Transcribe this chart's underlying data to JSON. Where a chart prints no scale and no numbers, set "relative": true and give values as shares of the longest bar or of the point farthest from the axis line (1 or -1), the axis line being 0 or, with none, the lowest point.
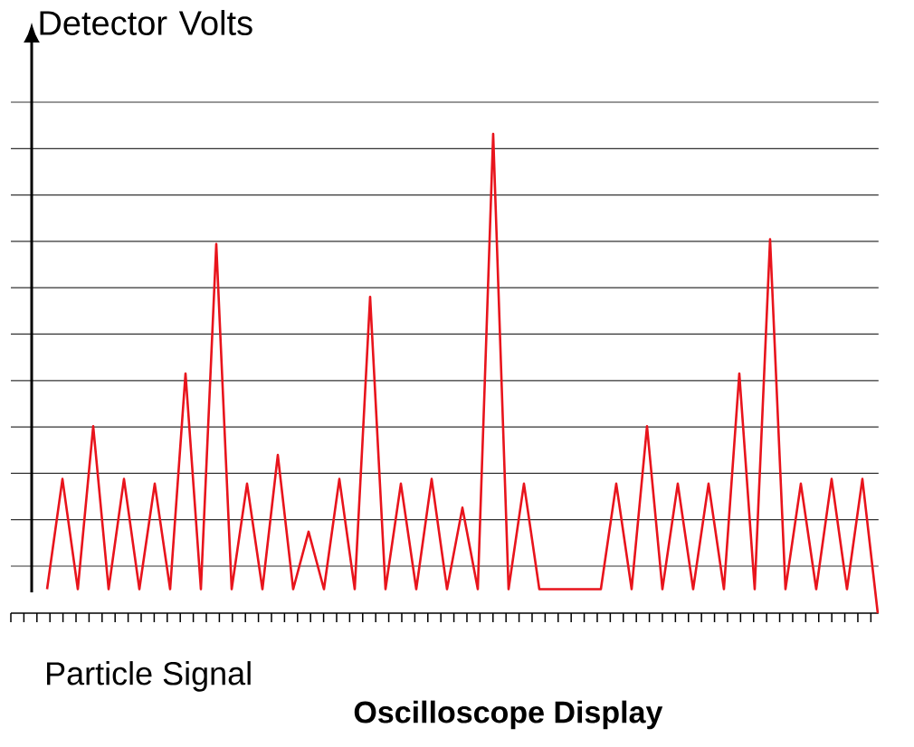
{
  "chart_data": {
    "type": "line",
    "title": "Oscilloscope Display",
    "xlabel": "Particle Signal",
    "ylabel": "Detector Volts",
    "relative": true,
    "grid": "y",
    "tick_labels": false,
    "color": "#e8141c",
    "categories": [
      null,
      null,
      null,
      null,
      null,
      null,
      null,
      null,
      null,
      null,
      null,
      null,
      null,
      null,
      null,
      null,
      null,
      null,
      null,
      null,
      null,
      null,
      null,
      null,
      null,
      null,
      null,
      null,
      null,
      null,
      null,
      null,
      null,
      null,
      null,
      null,
      null,
      null,
      null,
      null,
      null,
      null,
      null,
      null,
      null,
      null,
      null,
      null,
      null,
      null,
      null,
      null,
      null,
      null,
      null
    ],
    "values": [
      0.05,
      0.28,
      0.05,
      0.39,
      0.05,
      0.28,
      0.05,
      0.27,
      0.05,
      0.5,
      0.05,
      0.77,
      0.05,
      0.27,
      0.05,
      0.33,
      0.05,
      0.17,
      0.05,
      0.28,
      0.05,
      0.66,
      0.05,
      0.27,
      0.05,
      0.28,
      0.05,
      0.22,
      0.05,
      1,
      0.05,
      0.27,
      0.05,
      0.05,
      0.05,
      0.05,
      0.05,
      0.27,
      0.05,
      0.39,
      0.05,
      0.27,
      0.05,
      0.27,
      0.05,
      0.5,
      0.05,
      0.78,
      0.05,
      0.27,
      0.05,
      0.28,
      0.05,
      0.28,
      0
    ]
  }
}
